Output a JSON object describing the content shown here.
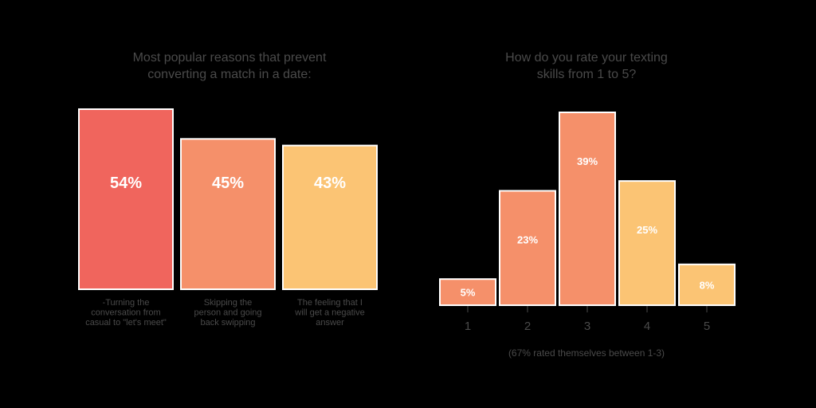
{
  "chart_data": [
    {
      "type": "bar",
      "title_lines": [
        "Most popular reasons that prevent",
        "converting a match in a date:"
      ],
      "categories": [
        [
          "-Turning the",
          "conversation from",
          "casual to \"let's meet\""
        ],
        [
          "Skipping the",
          "person and going",
          "back swipping"
        ],
        [
          "The feeling that I",
          "will get a negative",
          "answer"
        ]
      ],
      "values": [
        54,
        45,
        43
      ],
      "value_labels": [
        "54%",
        "45%",
        "43%"
      ],
      "colors": [
        "#F0655D",
        "#F5906A",
        "#FBC474"
      ],
      "ylim": [
        0,
        54
      ],
      "xlabel": "",
      "ylabel": ""
    },
    {
      "type": "bar",
      "title_lines": [
        "How do you rate your texting",
        "skills from 1 to 5?"
      ],
      "categories": [
        "1",
        "2",
        "3",
        "4",
        "5"
      ],
      "values": [
        5,
        23,
        39,
        25,
        8
      ],
      "value_labels": [
        "5%",
        "23%",
        "39%",
        "25%",
        "8%"
      ],
      "colors": [
        "#F5906A",
        "#F5906A",
        "#F5906A",
        "#FBC474",
        "#FBC474"
      ],
      "ylim": [
        0,
        39
      ],
      "xlabel": "",
      "ylabel": "",
      "note": "(67% rated themselves between 1-3)"
    }
  ]
}
